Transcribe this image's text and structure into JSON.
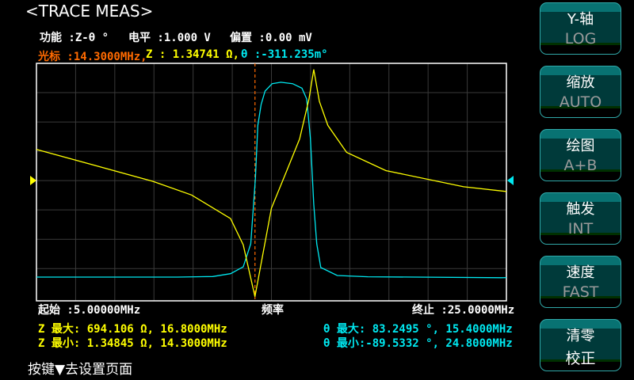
{
  "header": {
    "title": "<TRACE MEAS>"
  },
  "info": {
    "function": "功能 :Z-θ °",
    "level": "电平 :1.000 V",
    "bias": "偏置 :0.00 mV"
  },
  "cursor": {
    "freq": "光标 :14.3000MHz,",
    "z": "Z : 1.34741 Ω,",
    "theta": "θ :-311.235m°"
  },
  "axis": {
    "start": "起始 :5.00000MHz",
    "label": "频率",
    "stop": "终止 :25.0000MHz"
  },
  "stats": {
    "z_max": "Z 最大: 694.106 Ω, 16.8000MHz",
    "z_min": "Z 最小: 1.34845 Ω, 14.3000MHz",
    "theta_max": "θ 最大: 83.2495 °, 15.4000MHz",
    "theta_min": "θ 最小:-89.5332 °, 24.8000MHz"
  },
  "hint": "按键▼去设置页面",
  "softkeys": [
    {
      "title": "Y-轴",
      "value": "LOG"
    },
    {
      "title": "缩放",
      "value": "AUTO"
    },
    {
      "title": "绘图",
      "value": "A+B"
    },
    {
      "title": "触发",
      "value": "INT"
    },
    {
      "title": "速度",
      "value": "FAST"
    },
    {
      "title": "清零",
      "value": "校正"
    }
  ],
  "colors": {
    "z_trace": "#ffff00",
    "theta_trace": "#00e8f0",
    "cursor": "#ff6a00",
    "grid": "#3a3a3a",
    "button_accent": "#087272"
  },
  "chart_data": {
    "type": "line",
    "x_unit": "MHz",
    "xlim": [
      5,
      25
    ],
    "cursor_x": 14.3,
    "series": [
      {
        "name": "Z",
        "scale": "log",
        "ylim": [
          1.2,
          820
        ],
        "points": [
          [
            5.0,
            77
          ],
          [
            9.96,
            32
          ],
          [
            11.6,
            22
          ],
          [
            13.26,
            11.5
          ],
          [
            13.8,
            5.6
          ],
          [
            14.3,
            1.348
          ],
          [
            15.0,
            15.3
          ],
          [
            15.65,
            42.8
          ],
          [
            16.2,
            103
          ],
          [
            16.6,
            308
          ],
          [
            16.8,
            694
          ],
          [
            17.04,
            288
          ],
          [
            17.4,
            149
          ],
          [
            18.2,
            71
          ],
          [
            19.87,
            43
          ],
          [
            23.18,
            27.6
          ],
          [
            25.0,
            24.2
          ]
        ]
      },
      {
        "name": "θ",
        "scale": "linear",
        "ylim": [
          -110,
          100
        ],
        "points": [
          [
            5.0,
            -89.0
          ],
          [
            11.0,
            -89.0
          ],
          [
            12.5,
            -88.5
          ],
          [
            13.26,
            -86
          ],
          [
            13.8,
            -80
          ],
          [
            14.12,
            -59.6
          ],
          [
            14.32,
            -1.5
          ],
          [
            14.42,
            45
          ],
          [
            14.56,
            63.6
          ],
          [
            14.73,
            75.5
          ],
          [
            15.03,
            82
          ],
          [
            15.4,
            83.25
          ],
          [
            15.9,
            82
          ],
          [
            16.3,
            78
          ],
          [
            16.5,
            68.5
          ],
          [
            16.66,
            33.5
          ],
          [
            16.8,
            -24.6
          ],
          [
            16.93,
            -59.6
          ],
          [
            17.1,
            -80.6
          ],
          [
            17.25,
            -82
          ],
          [
            17.8,
            -87.6
          ],
          [
            19.1,
            -88.7
          ],
          [
            24.8,
            -89.53
          ],
          [
            25.0,
            -89.5
          ]
        ]
      }
    ]
  }
}
